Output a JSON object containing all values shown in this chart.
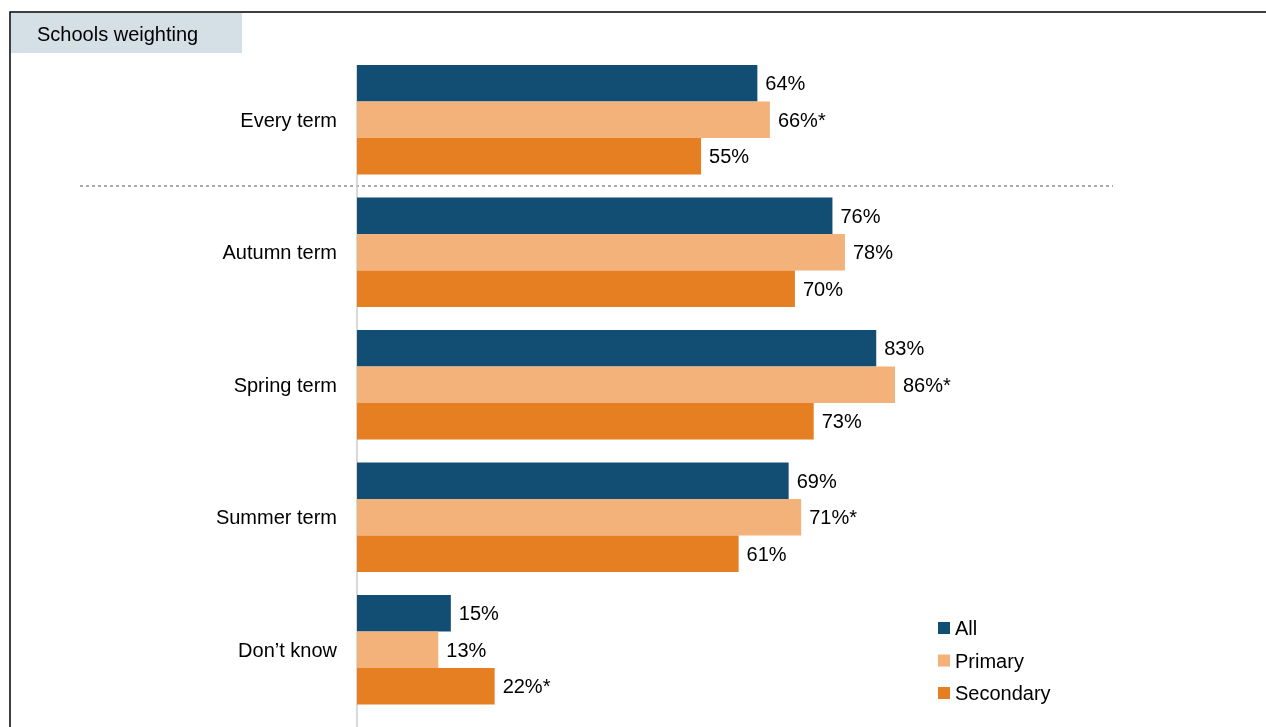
{
  "chart_data": {
    "type": "bar",
    "orientation": "horizontal",
    "title": "Schools weighting",
    "categories": [
      "Every term",
      "Autumn term",
      "Spring term",
      "Summer term",
      "Don’t know"
    ],
    "series": [
      {
        "name": "All",
        "color": "#124e73",
        "values": [
          64,
          76,
          83,
          69,
          15
        ],
        "value_labels": [
          "64%",
          "76%",
          "83%",
          "69%",
          "15%"
        ]
      },
      {
        "name": "Primary",
        "color": "#f2b27a",
        "values": [
          66,
          78,
          86,
          71,
          13
        ],
        "value_labels": [
          "66%*",
          "78%",
          "86%*",
          "71%*",
          "13%"
        ]
      },
      {
        "name": "Secondary",
        "color": "#e67e22",
        "values": [
          55,
          70,
          73,
          61,
          22
        ],
        "value_labels": [
          "55%",
          "70%",
          "73%",
          "61%",
          "22%*"
        ]
      }
    ],
    "legend": "bottom right"
  }
}
